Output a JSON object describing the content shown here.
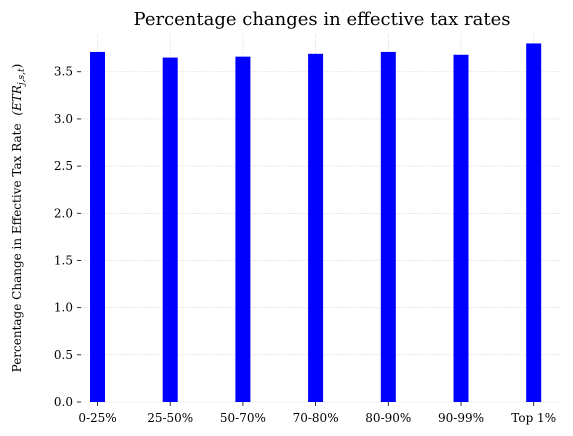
{
  "chart_data": {
    "type": "bar",
    "title": "Percentage changes in effective tax rates",
    "xlabel": "",
    "ylabel": "Percentage Change in Effective Tax Rate",
    "ylabel_math": "(ETR_{j,s,t})",
    "categories": [
      "0-25%",
      "25-50%",
      "50-70%",
      "70-80%",
      "80-90%",
      "90-99%",
      "Top 1%"
    ],
    "values": [
      3.71,
      3.65,
      3.66,
      3.69,
      3.71,
      3.68,
      3.8
    ],
    "ylim": [
      0,
      3.9
    ],
    "yticks": [
      0.0,
      0.5,
      1.0,
      1.5,
      2.0,
      2.5,
      3.0,
      3.5
    ],
    "ytick_labels": [
      "0.0",
      "0.5",
      "1.0",
      "1.5",
      "2.0",
      "2.5",
      "3.0",
      "3.5"
    ],
    "grid": true,
    "bar_color": "#0000ff",
    "grid_color": "#cccccc"
  }
}
